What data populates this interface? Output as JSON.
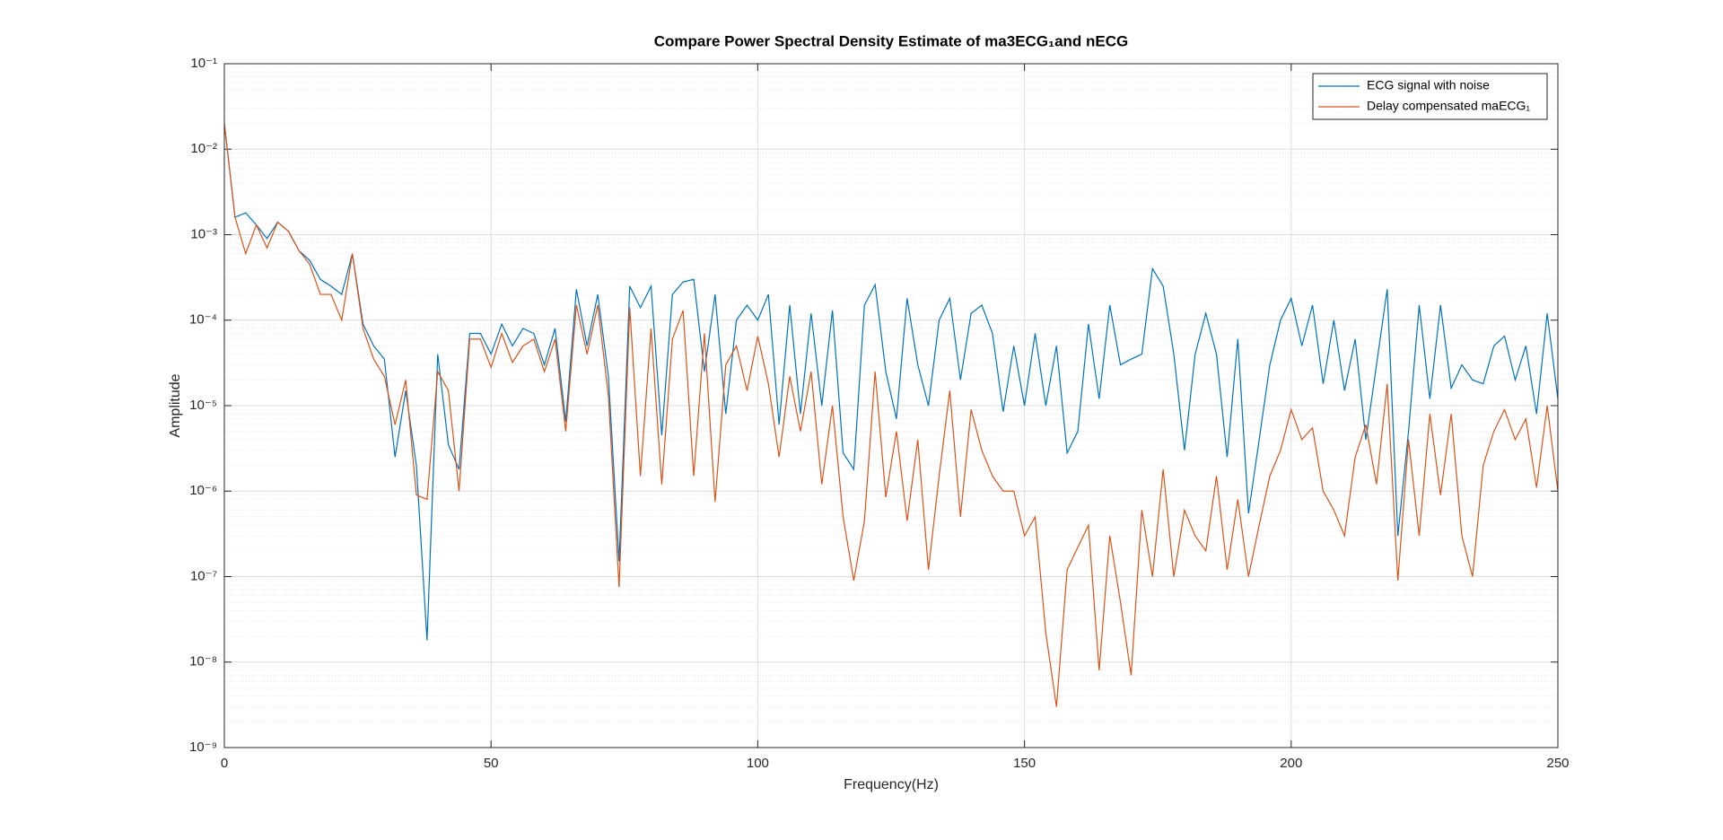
{
  "chart_data": {
    "type": "line",
    "title": "Compare Power Spectral Density Estimate of ma3ECG₁and nECG",
    "x_label": "Frequency(Hz)",
    "y_label": "Amplitude",
    "xlim": [
      0,
      250
    ],
    "xticks": [
      0,
      50,
      100,
      150,
      200,
      250
    ],
    "ylim": [
      1e-09,
      0.1
    ],
    "log_y": true,
    "yticks": [
      {
        "value": 1e-09,
        "label": "10⁻⁹"
      },
      {
        "value": 1e-08,
        "label": "10⁻⁸"
      },
      {
        "value": 1e-07,
        "label": "10⁻⁷"
      },
      {
        "value": 1e-06,
        "label": "10⁻⁶"
      },
      {
        "value": 1e-05,
        "label": "10⁻⁵"
      },
      {
        "value": 0.0001,
        "label": "10⁻⁴"
      },
      {
        "value": 0.001,
        "label": "10⁻³"
      },
      {
        "value": 0.01,
        "label": "10⁻²"
      },
      {
        "value": 0.1,
        "label": "10⁻¹"
      }
    ],
    "grid": true,
    "minor_grid": true,
    "legend": "northeast",
    "x": [
      0,
      2,
      4,
      6,
      8,
      10,
      12,
      14,
      16,
      18,
      20,
      22,
      24,
      26,
      28,
      30,
      32,
      34,
      36,
      38,
      40,
      42,
      44,
      46,
      48,
      50,
      52,
      54,
      56,
      58,
      60,
      62,
      64,
      66,
      68,
      70,
      72,
      74,
      76,
      78,
      80,
      82,
      84,
      86,
      88,
      90,
      92,
      94,
      96,
      98,
      100,
      102,
      104,
      106,
      108,
      110,
      112,
      114,
      116,
      118,
      120,
      122,
      124,
      126,
      128,
      130,
      132,
      134,
      136,
      138,
      140,
      142,
      144,
      146,
      148,
      150,
      152,
      154,
      156,
      158,
      160,
      162,
      164,
      166,
      168,
      170,
      172,
      174,
      176,
      178,
      180,
      182,
      184,
      186,
      188,
      190,
      192,
      194,
      196,
      198,
      200,
      202,
      204,
      206,
      208,
      210,
      212,
      214,
      216,
      218,
      220,
      222,
      224,
      226,
      228,
      230,
      232,
      234,
      236,
      238,
      240,
      242,
      244,
      246,
      248,
      250
    ],
    "series": [
      {
        "name": "ECG signal with noise",
        "color": "#0072BD",
        "values": [
          0.02,
          0.0016,
          0.0018,
          0.0013,
          0.0009,
          0.0014,
          0.0011,
          0.00065,
          0.0005,
          0.0003,
          0.00025,
          0.0002,
          0.0006,
          9e-05,
          5e-05,
          3.5e-05,
          2.5e-06,
          1.5e-05,
          2e-06,
          1.8e-08,
          4e-05,
          3.5e-06,
          1.8e-06,
          7e-05,
          7e-05,
          4e-05,
          9e-05,
          5e-05,
          8e-05,
          7e-05,
          3e-05,
          8e-05,
          6.5e-06,
          0.00023,
          5e-05,
          0.0002,
          2.2e-05,
          1.5e-07,
          0.00025,
          0.00014,
          0.00025,
          4.5e-06,
          0.0002,
          0.00028,
          0.0003,
          2.5e-05,
          0.0002,
          8e-06,
          0.0001,
          0.00015,
          0.0001,
          0.0002,
          6e-06,
          0.00015,
          8e-06,
          0.00012,
          1e-05,
          0.00013,
          2.8e-06,
          1.8e-06,
          0.00015,
          0.00026,
          2.5e-05,
          7e-06,
          0.00018,
          3e-05,
          1e-05,
          0.0001,
          0.00018,
          2e-05,
          0.00012,
          0.00015,
          7e-05,
          8.5e-06,
          5e-05,
          1e-05,
          7e-05,
          1e-05,
          5e-05,
          2.8e-06,
          5e-06,
          9e-05,
          1.2e-05,
          0.00015,
          3e-05,
          3.5e-05,
          4e-05,
          0.0004,
          0.00025,
          4e-05,
          3e-06,
          4e-05,
          0.00012,
          4e-05,
          2.5e-06,
          6e-05,
          5.5e-07,
          4e-06,
          3e-05,
          0.0001,
          0.00018,
          5e-05,
          0.00015,
          1.8e-05,
          0.0001,
          1.5e-05,
          6e-05,
          4e-06,
          3e-05,
          0.00023,
          3e-07,
          5e-06,
          0.00015,
          1.2e-05,
          0.00015,
          1.6e-05,
          3e-05,
          2e-05,
          1.8e-05,
          5e-05,
          6.5e-05,
          2e-05,
          5e-05,
          8e-06,
          0.00012,
          1.2e-05
        ]
      },
      {
        "name": "Delay compensated maECG₁",
        "color": "#D95319",
        "values": [
          0.02,
          0.0016,
          0.0006,
          0.0013,
          0.0007,
          0.0014,
          0.0011,
          0.00065,
          0.00045,
          0.0002,
          0.0002,
          0.0001,
          0.0006,
          8e-05,
          3.5e-05,
          2.2e-05,
          6e-06,
          2e-05,
          9e-07,
          8e-07,
          2.5e-05,
          1.5e-05,
          1e-06,
          6e-05,
          6e-05,
          2.8e-05,
          7e-05,
          3.2e-05,
          5e-05,
          6e-05,
          2.5e-05,
          6e-05,
          5e-06,
          0.00015,
          4e-05,
          0.00015,
          1.3e-05,
          7.5e-08,
          0.00014,
          1.5e-06,
          8e-05,
          1.2e-06,
          6e-05,
          0.00013,
          1.5e-06,
          7e-05,
          7.5e-07,
          3e-05,
          5e-05,
          1.5e-05,
          6.5e-05,
          1.8e-05,
          2.5e-06,
          2.2e-05,
          5e-06,
          2.5e-05,
          1.2e-06,
          1e-05,
          5e-07,
          9e-08,
          4.5e-07,
          2.5e-05,
          8.5e-07,
          5e-06,
          4.5e-07,
          4e-06,
          1.2e-07,
          1.5e-06,
          1.5e-05,
          5e-07,
          9e-06,
          3e-06,
          1.5e-06,
          1e-06,
          1e-06,
          3e-07,
          5e-07,
          2.2e-08,
          3e-09,
          1.2e-07,
          2.2e-07,
          4e-07,
          8e-09,
          3e-07,
          5e-08,
          7e-09,
          6e-07,
          1e-07,
          1.8e-06,
          1e-07,
          6e-07,
          3e-07,
          2e-07,
          1.5e-06,
          1.2e-07,
          8e-07,
          1e-07,
          4e-07,
          1.5e-06,
          3e-06,
          9e-06,
          4e-06,
          5.5e-06,
          1e-06,
          6e-07,
          3e-07,
          2.5e-06,
          6e-06,
          1.2e-06,
          1.8e-05,
          9e-08,
          4e-06,
          3e-07,
          8e-06,
          9e-07,
          8e-06,
          3e-07,
          1e-07,
          2e-06,
          5e-06,
          9e-06,
          4e-06,
          7e-06,
          1.1e-06,
          1e-05,
          1e-06
        ]
      }
    ]
  }
}
